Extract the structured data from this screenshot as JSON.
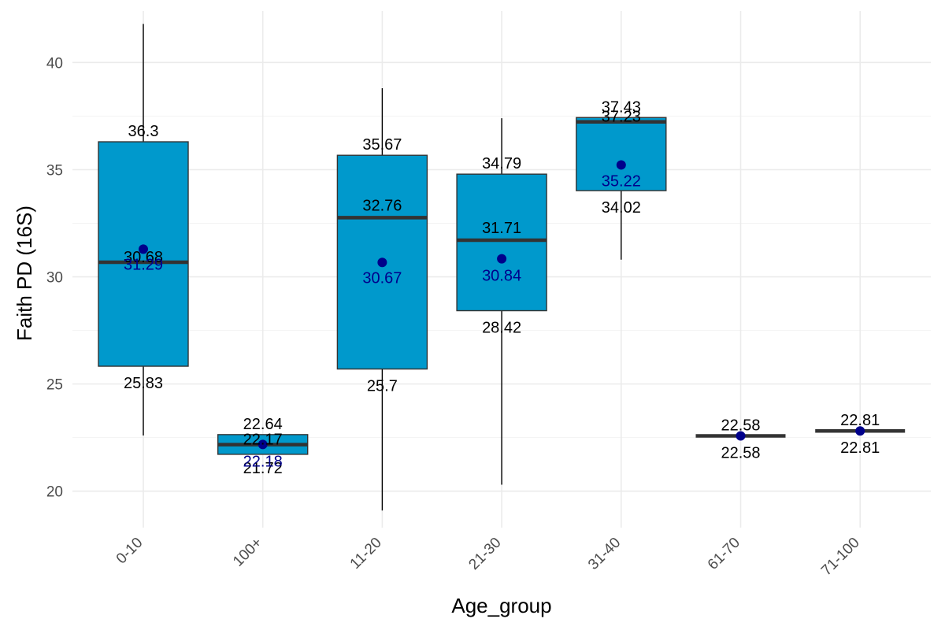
{
  "chart_data": {
    "type": "box",
    "xlabel": "Age_group",
    "ylabel": "Faith PD (16S)",
    "ylim": [
      18.3,
      42.4
    ],
    "yticks": [
      20,
      25,
      30,
      35,
      40
    ],
    "grid": true,
    "colors": {
      "box_fill": "#0099cc",
      "mean_point": "#00008b",
      "median_line": "#333333"
    },
    "categories": [
      "0-10",
      "100+",
      "11-20",
      "21-30",
      "31-40",
      "61-70",
      "71-100"
    ],
    "boxes": [
      {
        "category": "0-10",
        "min": 22.6,
        "q1": 25.83,
        "median": 30.68,
        "q3": 36.3,
        "max": 41.8,
        "mean": 31.29
      },
      {
        "category": "100+",
        "min": 21.72,
        "q1": 21.72,
        "median": 22.17,
        "q3": 22.64,
        "max": 22.64,
        "mean": 22.18
      },
      {
        "category": "11-20",
        "min": 19.1,
        "q1": 25.7,
        "median": 32.76,
        "q3": 35.67,
        "max": 38.8,
        "mean": 30.67
      },
      {
        "category": "21-30",
        "min": 20.3,
        "q1": 28.42,
        "median": 31.71,
        "q3": 34.79,
        "max": 37.4,
        "mean": 30.84
      },
      {
        "category": "31-40",
        "min": 30.8,
        "q1": 34.02,
        "median": 37.23,
        "q3": 37.43,
        "max": 37.43,
        "mean": 35.22
      },
      {
        "category": "61-70",
        "min": 22.58,
        "q1": 22.58,
        "median": 22.58,
        "q3": 22.58,
        "max": 22.58,
        "mean": 22.58
      },
      {
        "category": "71-100",
        "min": 22.81,
        "q1": 22.81,
        "median": 22.81,
        "q3": 22.81,
        "max": 22.81,
        "mean": 22.81
      }
    ],
    "annotations": [
      {
        "category": "0-10",
        "texts": [
          "36.3",
          "30.68",
          "25.83"
        ],
        "mean_text": "31.29"
      },
      {
        "category": "100+",
        "texts": [
          "22.64",
          "22.17",
          "21.72"
        ],
        "mean_text": "22.18"
      },
      {
        "category": "11-20",
        "texts": [
          "35.67",
          "32.76",
          "25.7"
        ],
        "mean_text": "30.67"
      },
      {
        "category": "21-30",
        "texts": [
          "34.79",
          "31.71",
          "28.42"
        ],
        "mean_text": "30.84"
      },
      {
        "category": "31-40",
        "texts": [
          "37.43",
          "37.23",
          "34.02"
        ],
        "mean_text": "35.22"
      },
      {
        "category": "61-70",
        "texts": [
          "22.58",
          "22.58"
        ],
        "mean_text": ""
      },
      {
        "category": "71-100",
        "texts": [
          "22.81",
          "22.81"
        ],
        "mean_text": ""
      }
    ]
  }
}
